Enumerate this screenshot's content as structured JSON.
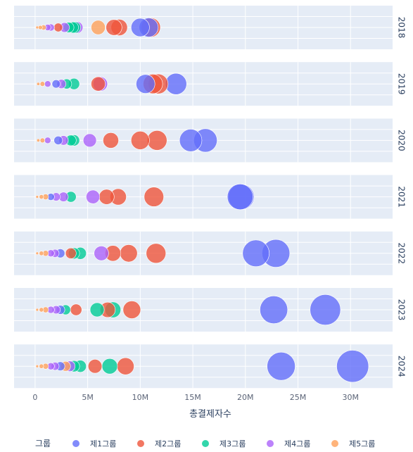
{
  "chart_data": {
    "type": "scatter",
    "xlabel": "총결제자수",
    "xlim": [
      -2000000,
      34000000
    ],
    "xticks": [
      {
        "value": 0,
        "label": "0"
      },
      {
        "value": 5000000,
        "label": "5M"
      },
      {
        "value": 10000000,
        "label": "10M"
      },
      {
        "value": 15000000,
        "label": "15M"
      },
      {
        "value": 20000000,
        "label": "20M"
      },
      {
        "value": 25000000,
        "label": "25M"
      },
      {
        "value": 30000000,
        "label": "30M"
      }
    ],
    "facets": [
      "2018",
      "2019",
      "2020",
      "2021",
      "2022",
      "2023",
      "2024"
    ],
    "size_max_value": 31000000,
    "legend_title": "그룹",
    "legend_position": "bottom",
    "series": [
      {
        "name": "제1그룹",
        "color": "#636efa"
      },
      {
        "name": "제2그룹",
        "color": "#ef553b"
      },
      {
        "name": "제3그룹",
        "color": "#00cc96"
      },
      {
        "name": "제4그룹",
        "color": "#ab63fa"
      },
      {
        "name": "제5그룹",
        "color": "#ffa15a"
      }
    ],
    "points": {
      "2018": [
        [
          4,
          200000
        ],
        [
          4,
          500000
        ],
        [
          4,
          800000
        ],
        [
          3,
          1200000
        ],
        [
          3,
          1500000
        ],
        [
          1,
          2200000
        ],
        [
          3,
          2800000
        ],
        [
          2,
          3200000
        ],
        [
          2,
          3600000
        ],
        [
          2,
          3800000
        ],
        [
          3,
          4000000
        ],
        [
          4,
          6000000
        ],
        [
          1,
          7500000
        ],
        [
          1,
          8000000
        ],
        [
          0,
          10000000
        ],
        [
          0,
          10800000
        ],
        [
          1,
          11000000
        ]
      ],
      "2019": [
        [
          4,
          300000
        ],
        [
          4,
          700000
        ],
        [
          3,
          1200000
        ],
        [
          0,
          2000000
        ],
        [
          3,
          2500000
        ],
        [
          2,
          3000000
        ],
        [
          2,
          3700000
        ],
        [
          1,
          6000000
        ],
        [
          3,
          6200000
        ],
        [
          0,
          10500000
        ],
        [
          1,
          11200000
        ],
        [
          1,
          11700000
        ],
        [
          0,
          13400000
        ]
      ],
      "2020": [
        [
          4,
          300000
        ],
        [
          4,
          700000
        ],
        [
          3,
          1200000
        ],
        [
          0,
          2200000
        ],
        [
          3,
          2700000
        ],
        [
          2,
          3400000
        ],
        [
          2,
          3700000
        ],
        [
          3,
          5200000
        ],
        [
          1,
          7200000
        ],
        [
          1,
          10000000
        ],
        [
          1,
          11600000
        ],
        [
          0,
          14800000
        ],
        [
          0,
          16200000
        ]
      ],
      "2021": [
        [
          4,
          200000
        ],
        [
          4,
          600000
        ],
        [
          4,
          1000000
        ],
        [
          0,
          1500000
        ],
        [
          3,
          2000000
        ],
        [
          3,
          2700000
        ],
        [
          2,
          3400000
        ],
        [
          3,
          5500000
        ],
        [
          1,
          6800000
        ],
        [
          1,
          7900000
        ],
        [
          1,
          11300000
        ],
        [
          0,
          19500000
        ],
        [
          0,
          19600000
        ]
      ],
      "2022": [
        [
          4,
          200000
        ],
        [
          4,
          600000
        ],
        [
          4,
          1000000
        ],
        [
          3,
          1500000
        ],
        [
          3,
          1900000
        ],
        [
          0,
          2400000
        ],
        [
          1,
          3400000
        ],
        [
          2,
          3700000
        ],
        [
          2,
          4300000
        ],
        [
          3,
          6300000
        ],
        [
          1,
          7400000
        ],
        [
          1,
          8900000
        ],
        [
          1,
          11500000
        ],
        [
          0,
          21000000
        ],
        [
          0,
          22900000
        ]
      ],
      "2023": [
        [
          4,
          200000
        ],
        [
          4,
          600000
        ],
        [
          4,
          1000000
        ],
        [
          3,
          1500000
        ],
        [
          3,
          2000000
        ],
        [
          0,
          2400000
        ],
        [
          2,
          2900000
        ],
        [
          1,
          3900000
        ],
        [
          2,
          5900000
        ],
        [
          1,
          6900000
        ],
        [
          2,
          7400000
        ],
        [
          1,
          9200000
        ],
        [
          0,
          22700000
        ],
        [
          0,
          27600000
        ]
      ],
      "2024": [
        [
          4,
          200000
        ],
        [
          4,
          600000
        ],
        [
          4,
          1000000
        ],
        [
          3,
          1500000
        ],
        [
          3,
          1900000
        ],
        [
          0,
          2400000
        ],
        [
          4,
          2900000
        ],
        [
          3,
          3300000
        ],
        [
          2,
          3700000
        ],
        [
          2,
          4300000
        ],
        [
          1,
          5700000
        ],
        [
          2,
          7100000
        ],
        [
          1,
          8600000
        ],
        [
          0,
          23400000
        ],
        [
          0,
          30200000
        ]
      ]
    }
  }
}
